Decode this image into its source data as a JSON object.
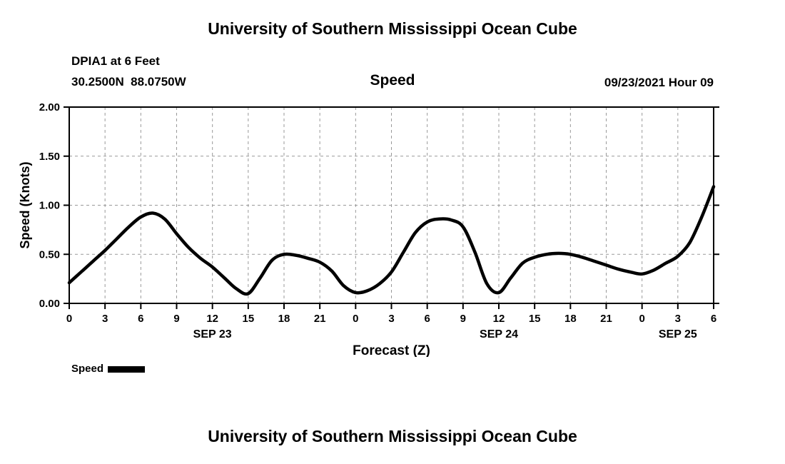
{
  "page": {
    "top_title": "University of Southern Mississippi Ocean Cube",
    "bottom_title": "University of Southern Mississippi Ocean Cube"
  },
  "header": {
    "station": "DPIA1 at 6 Feet",
    "coordinates": "30.2500N  88.0750W",
    "panel_title": "Speed",
    "run_time": "09/23/2021 Hour 09"
  },
  "legend": {
    "label": "Speed",
    "swatch_color": "#000000"
  },
  "chart_data": {
    "type": "line",
    "title": "Speed",
    "xlabel": "Forecast (Z)",
    "ylabel": "Speed (Knots)",
    "xlim": [
      0,
      54
    ],
    "ylim": [
      0.0,
      2.0
    ],
    "grid": "dashed",
    "grid_color": "#999999",
    "yticks": [
      0.0,
      0.5,
      1.0,
      1.5,
      2.0
    ],
    "ytick_labels": [
      "0.00",
      "0.50",
      "1.00",
      "1.50",
      "2.00"
    ],
    "xtick_hours": [
      0,
      3,
      6,
      9,
      12,
      15,
      18,
      21,
      24,
      27,
      30,
      33,
      36,
      39,
      42,
      45,
      48,
      51,
      54
    ],
    "xtick_labels": [
      "0",
      "3",
      "6",
      "9",
      "12",
      "15",
      "18",
      "21",
      "0",
      "3",
      "6",
      "9",
      "12",
      "15",
      "18",
      "21",
      "0",
      "3",
      "6"
    ],
    "date_labels": [
      {
        "label": "SEP 23",
        "center_hour": 12
      },
      {
        "label": "SEP 24",
        "center_hour": 36
      },
      {
        "label": "SEP 25",
        "center_hour": 51
      }
    ],
    "series": [
      {
        "name": "Speed",
        "color": "#000000",
        "x": [
          0,
          1,
          2,
          3,
          4,
          5,
          6,
          7,
          8,
          9,
          10,
          11,
          12,
          13,
          14,
          15,
          16,
          17,
          18,
          19,
          20,
          21,
          22,
          23,
          24,
          25,
          26,
          27,
          28,
          29,
          30,
          31,
          32,
          33,
          34,
          35,
          36,
          37,
          38,
          39,
          40,
          41,
          42,
          43,
          44,
          45,
          46,
          47,
          48,
          49,
          50,
          51,
          52,
          53,
          54
        ],
        "values": [
          0.21,
          0.32,
          0.43,
          0.54,
          0.66,
          0.78,
          0.88,
          0.92,
          0.86,
          0.71,
          0.57,
          0.46,
          0.37,
          0.26,
          0.15,
          0.1,
          0.26,
          0.44,
          0.5,
          0.49,
          0.46,
          0.42,
          0.33,
          0.18,
          0.11,
          0.13,
          0.2,
          0.32,
          0.52,
          0.72,
          0.83,
          0.86,
          0.85,
          0.78,
          0.52,
          0.2,
          0.11,
          0.26,
          0.41,
          0.47,
          0.5,
          0.51,
          0.5,
          0.47,
          0.43,
          0.39,
          0.35,
          0.32,
          0.3,
          0.34,
          0.41,
          0.48,
          0.62,
          0.88,
          1.19
        ]
      }
    ]
  }
}
